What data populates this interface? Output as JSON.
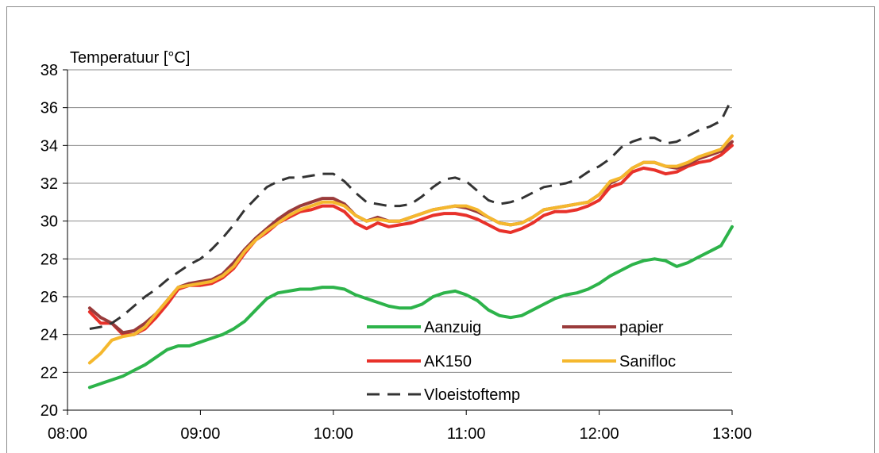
{
  "chart_data": {
    "type": "line",
    "ylabel": "Temperatuur [°C]",
    "xlabel": "",
    "ylim": [
      20,
      38
    ],
    "yticks": [
      20,
      22,
      24,
      26,
      28,
      30,
      32,
      34,
      36,
      38
    ],
    "xlim": [
      "08:00",
      "13:00"
    ],
    "xticks": [
      "08:00",
      "09:00",
      "10:00",
      "11:00",
      "12:00",
      "13:00"
    ],
    "grid": "horizontal",
    "legend_placement": "bottom-center",
    "series": [
      {
        "name": "Aanzuig",
        "color": "#2db34a",
        "dash": "solid",
        "points": [
          [
            "08:10",
            21.2
          ],
          [
            "08:15",
            21.4
          ],
          [
            "08:20",
            21.6
          ],
          [
            "08:25",
            21.8
          ],
          [
            "08:30",
            22.1
          ],
          [
            "08:35",
            22.4
          ],
          [
            "08:40",
            22.8
          ],
          [
            "08:45",
            23.2
          ],
          [
            "08:50",
            23.4
          ],
          [
            "08:55",
            23.4
          ],
          [
            "09:00",
            23.6
          ],
          [
            "09:05",
            23.8
          ],
          [
            "09:10",
            24.0
          ],
          [
            "09:15",
            24.3
          ],
          [
            "09:20",
            24.7
          ],
          [
            "09:25",
            25.3
          ],
          [
            "09:30",
            25.9
          ],
          [
            "09:35",
            26.2
          ],
          [
            "09:40",
            26.3
          ],
          [
            "09:45",
            26.4
          ],
          [
            "09:50",
            26.4
          ],
          [
            "09:55",
            26.5
          ],
          [
            "10:00",
            26.5
          ],
          [
            "10:05",
            26.4
          ],
          [
            "10:10",
            26.1
          ],
          [
            "10:15",
            25.9
          ],
          [
            "10:20",
            25.7
          ],
          [
            "10:25",
            25.5
          ],
          [
            "10:30",
            25.4
          ],
          [
            "10:35",
            25.4
          ],
          [
            "10:40",
            25.6
          ],
          [
            "10:45",
            26.0
          ],
          [
            "10:50",
            26.2
          ],
          [
            "10:55",
            26.3
          ],
          [
            "11:00",
            26.1
          ],
          [
            "11:05",
            25.8
          ],
          [
            "11:10",
            25.3
          ],
          [
            "11:15",
            25.0
          ],
          [
            "11:20",
            24.9
          ],
          [
            "11:25",
            25.0
          ],
          [
            "11:30",
            25.3
          ],
          [
            "11:35",
            25.6
          ],
          [
            "11:40",
            25.9
          ],
          [
            "11:45",
            26.1
          ],
          [
            "11:50",
            26.2
          ],
          [
            "11:55",
            26.4
          ],
          [
            "12:00",
            26.7
          ],
          [
            "12:05",
            27.1
          ],
          [
            "12:10",
            27.4
          ],
          [
            "12:15",
            27.7
          ],
          [
            "12:20",
            27.9
          ],
          [
            "12:25",
            28.0
          ],
          [
            "12:30",
            27.9
          ],
          [
            "12:35",
            27.6
          ],
          [
            "12:40",
            27.8
          ],
          [
            "12:45",
            28.1
          ],
          [
            "12:50",
            28.4
          ],
          [
            "12:55",
            28.7
          ],
          [
            "13:00",
            29.7
          ]
        ]
      },
      {
        "name": "papier",
        "color": "#9a3b3b",
        "dash": "solid",
        "points": [
          [
            "08:10",
            25.4
          ],
          [
            "08:15",
            24.9
          ],
          [
            "08:20",
            24.6
          ],
          [
            "08:25",
            24.1
          ],
          [
            "08:30",
            24.2
          ],
          [
            "08:35",
            24.6
          ],
          [
            "08:40",
            25.1
          ],
          [
            "08:45",
            25.8
          ],
          [
            "08:50",
            26.5
          ],
          [
            "08:55",
            26.7
          ],
          [
            "09:00",
            26.8
          ],
          [
            "09:05",
            26.9
          ],
          [
            "09:10",
            27.2
          ],
          [
            "09:15",
            27.8
          ],
          [
            "09:20",
            28.5
          ],
          [
            "09:25",
            29.1
          ],
          [
            "09:30",
            29.6
          ],
          [
            "09:35",
            30.1
          ],
          [
            "09:40",
            30.5
          ],
          [
            "09:45",
            30.8
          ],
          [
            "09:50",
            31.0
          ],
          [
            "09:55",
            31.2
          ],
          [
            "10:00",
            31.2
          ],
          [
            "10:05",
            30.9
          ],
          [
            "10:10",
            30.3
          ],
          [
            "10:15",
            30.0
          ],
          [
            "10:20",
            30.2
          ],
          [
            "10:25",
            30.0
          ],
          [
            "10:30",
            30.0
          ],
          [
            "10:35",
            30.2
          ],
          [
            "10:40",
            30.4
          ],
          [
            "10:45",
            30.6
          ],
          [
            "10:50",
            30.7
          ],
          [
            "10:55",
            30.8
          ],
          [
            "11:00",
            30.7
          ],
          [
            "11:05",
            30.5
          ],
          [
            "11:10",
            30.2
          ],
          [
            "11:15",
            29.9
          ],
          [
            "11:20",
            29.8
          ],
          [
            "11:25",
            29.9
          ],
          [
            "11:30",
            30.2
          ],
          [
            "11:35",
            30.6
          ],
          [
            "11:40",
            30.7
          ],
          [
            "11:45",
            30.8
          ],
          [
            "11:50",
            30.9
          ],
          [
            "11:55",
            31.0
          ],
          [
            "12:00",
            31.4
          ],
          [
            "12:05",
            32.0
          ],
          [
            "12:10",
            32.3
          ],
          [
            "12:15",
            32.8
          ],
          [
            "12:20",
            33.1
          ],
          [
            "12:25",
            33.1
          ],
          [
            "12:30",
            32.9
          ],
          [
            "12:35",
            32.8
          ],
          [
            "12:40",
            33.0
          ],
          [
            "12:45",
            33.3
          ],
          [
            "12:50",
            33.5
          ],
          [
            "12:55",
            33.7
          ],
          [
            "13:00",
            34.2
          ]
        ]
      },
      {
        "name": "AK150",
        "color": "#e8312a",
        "dash": "solid",
        "points": [
          [
            "08:10",
            25.2
          ],
          [
            "08:15",
            24.6
          ],
          [
            "08:20",
            24.6
          ],
          [
            "08:25",
            24.0
          ],
          [
            "08:30",
            24.0
          ],
          [
            "08:35",
            24.3
          ],
          [
            "08:40",
            24.9
          ],
          [
            "08:45",
            25.6
          ],
          [
            "08:50",
            26.4
          ],
          [
            "08:55",
            26.6
          ],
          [
            "09:00",
            26.6
          ],
          [
            "09:05",
            26.7
          ],
          [
            "09:10",
            27.0
          ],
          [
            "09:15",
            27.5
          ],
          [
            "09:20",
            28.3
          ],
          [
            "09:25",
            29.0
          ],
          [
            "09:30",
            29.4
          ],
          [
            "09:35",
            29.9
          ],
          [
            "09:40",
            30.2
          ],
          [
            "09:45",
            30.5
          ],
          [
            "09:50",
            30.6
          ],
          [
            "09:55",
            30.8
          ],
          [
            "10:00",
            30.8
          ],
          [
            "10:05",
            30.5
          ],
          [
            "10:10",
            29.9
          ],
          [
            "10:15",
            29.6
          ],
          [
            "10:20",
            29.9
          ],
          [
            "10:25",
            29.7
          ],
          [
            "10:30",
            29.8
          ],
          [
            "10:35",
            29.9
          ],
          [
            "10:40",
            30.1
          ],
          [
            "10:45",
            30.3
          ],
          [
            "10:50",
            30.4
          ],
          [
            "10:55",
            30.4
          ],
          [
            "11:00",
            30.3
          ],
          [
            "11:05",
            30.1
          ],
          [
            "11:10",
            29.8
          ],
          [
            "11:15",
            29.5
          ],
          [
            "11:20",
            29.4
          ],
          [
            "11:25",
            29.6
          ],
          [
            "11:30",
            29.9
          ],
          [
            "11:35",
            30.3
          ],
          [
            "11:40",
            30.5
          ],
          [
            "11:45",
            30.5
          ],
          [
            "11:50",
            30.6
          ],
          [
            "11:55",
            30.8
          ],
          [
            "12:00",
            31.1
          ],
          [
            "12:05",
            31.8
          ],
          [
            "12:10",
            32.0
          ],
          [
            "12:15",
            32.6
          ],
          [
            "12:20",
            32.8
          ],
          [
            "12:25",
            32.7
          ],
          [
            "12:30",
            32.5
          ],
          [
            "12:35",
            32.6
          ],
          [
            "12:40",
            32.9
          ],
          [
            "12:45",
            33.1
          ],
          [
            "12:50",
            33.2
          ],
          [
            "12:55",
            33.5
          ],
          [
            "13:00",
            34.0
          ]
        ]
      },
      {
        "name": "Sanifloc",
        "color": "#f5b82e",
        "dash": "solid",
        "points": [
          [
            "08:10",
            22.5
          ],
          [
            "08:15",
            23.0
          ],
          [
            "08:20",
            23.7
          ],
          [
            "08:25",
            23.9
          ],
          [
            "08:30",
            24.0
          ],
          [
            "08:35",
            24.4
          ],
          [
            "08:40",
            25.1
          ],
          [
            "08:45",
            25.8
          ],
          [
            "08:50",
            26.5
          ],
          [
            "08:55",
            26.6
          ],
          [
            "09:00",
            26.7
          ],
          [
            "09:05",
            26.8
          ],
          [
            "09:10",
            27.1
          ],
          [
            "09:15",
            27.6
          ],
          [
            "09:20",
            28.4
          ],
          [
            "09:25",
            29.0
          ],
          [
            "09:30",
            29.5
          ],
          [
            "09:35",
            29.9
          ],
          [
            "09:40",
            30.3
          ],
          [
            "09:45",
            30.6
          ],
          [
            "09:50",
            30.8
          ],
          [
            "09:55",
            31.0
          ],
          [
            "10:00",
            31.0
          ],
          [
            "10:05",
            30.8
          ],
          [
            "10:10",
            30.3
          ],
          [
            "10:15",
            30.0
          ],
          [
            "10:20",
            30.1
          ],
          [
            "10:25",
            30.0
          ],
          [
            "10:30",
            30.0
          ],
          [
            "10:35",
            30.2
          ],
          [
            "10:40",
            30.4
          ],
          [
            "10:45",
            30.6
          ],
          [
            "10:50",
            30.7
          ],
          [
            "10:55",
            30.8
          ],
          [
            "11:00",
            30.8
          ],
          [
            "11:05",
            30.6
          ],
          [
            "11:10",
            30.2
          ],
          [
            "11:15",
            29.9
          ],
          [
            "11:20",
            29.8
          ],
          [
            "11:25",
            29.9
          ],
          [
            "11:30",
            30.2
          ],
          [
            "11:35",
            30.6
          ],
          [
            "11:40",
            30.7
          ],
          [
            "11:45",
            30.8
          ],
          [
            "11:50",
            30.9
          ],
          [
            "11:55",
            31.0
          ],
          [
            "12:00",
            31.4
          ],
          [
            "12:05",
            32.1
          ],
          [
            "12:10",
            32.3
          ],
          [
            "12:15",
            32.8
          ],
          [
            "12:20",
            33.1
          ],
          [
            "12:25",
            33.1
          ],
          [
            "12:30",
            32.9
          ],
          [
            "12:35",
            32.9
          ],
          [
            "12:40",
            33.1
          ],
          [
            "12:45",
            33.4
          ],
          [
            "12:50",
            33.6
          ],
          [
            "12:55",
            33.8
          ],
          [
            "13:00",
            34.5
          ]
        ]
      },
      {
        "name": "Vloeistoftemp",
        "color": "#333333",
        "dash": "dashed",
        "points": [
          [
            "08:10",
            24.3
          ],
          [
            "08:15",
            24.4
          ],
          [
            "08:20",
            24.6
          ],
          [
            "08:25",
            25.0
          ],
          [
            "08:30",
            25.5
          ],
          [
            "08:35",
            26.0
          ],
          [
            "08:40",
            26.4
          ],
          [
            "08:45",
            26.9
          ],
          [
            "08:50",
            27.3
          ],
          [
            "08:55",
            27.7
          ],
          [
            "09:00",
            28.0
          ],
          [
            "09:05",
            28.5
          ],
          [
            "09:10",
            29.1
          ],
          [
            "09:15",
            29.8
          ],
          [
            "09:20",
            30.6
          ],
          [
            "09:25",
            31.2
          ],
          [
            "09:30",
            31.8
          ],
          [
            "09:35",
            32.1
          ],
          [
            "09:40",
            32.3
          ],
          [
            "09:45",
            32.3
          ],
          [
            "09:50",
            32.4
          ],
          [
            "09:55",
            32.5
          ],
          [
            "10:00",
            32.5
          ],
          [
            "10:05",
            32.1
          ],
          [
            "10:10",
            31.5
          ],
          [
            "10:15",
            31.0
          ],
          [
            "10:20",
            30.9
          ],
          [
            "10:25",
            30.8
          ],
          [
            "10:30",
            30.8
          ],
          [
            "10:35",
            30.9
          ],
          [
            "10:40",
            31.3
          ],
          [
            "10:45",
            31.8
          ],
          [
            "10:50",
            32.2
          ],
          [
            "10:55",
            32.3
          ],
          [
            "11:00",
            32.1
          ],
          [
            "11:05",
            31.6
          ],
          [
            "11:10",
            31.1
          ],
          [
            "11:15",
            30.9
          ],
          [
            "11:20",
            31.0
          ],
          [
            "11:25",
            31.2
          ],
          [
            "11:30",
            31.5
          ],
          [
            "11:35",
            31.8
          ],
          [
            "11:40",
            31.9
          ],
          [
            "11:45",
            32.0
          ],
          [
            "11:50",
            32.2
          ],
          [
            "11:55",
            32.6
          ],
          [
            "12:00",
            32.9
          ],
          [
            "12:05",
            33.3
          ],
          [
            "12:10",
            33.9
          ],
          [
            "12:15",
            34.2
          ],
          [
            "12:20",
            34.4
          ],
          [
            "12:25",
            34.4
          ],
          [
            "12:30",
            34.1
          ],
          [
            "12:35",
            34.2
          ],
          [
            "12:40",
            34.5
          ],
          [
            "12:45",
            34.8
          ],
          [
            "12:50",
            35.0
          ],
          [
            "12:55",
            35.3
          ],
          [
            "13:00",
            36.5
          ]
        ]
      }
    ]
  }
}
